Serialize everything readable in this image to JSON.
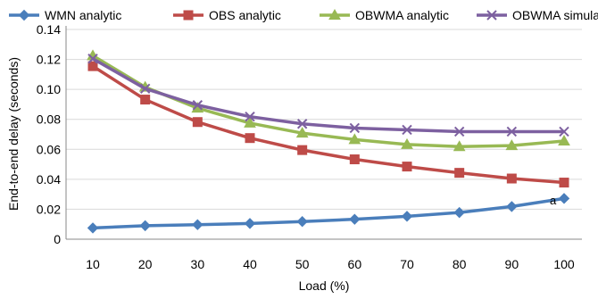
{
  "chart_data": {
    "type": "line",
    "x": [
      10,
      20,
      30,
      40,
      50,
      60,
      70,
      80,
      90,
      100
    ],
    "xlabel": "Load (%)",
    "ylabel": "End-to-end delay (seconds)",
    "ylim": [
      0,
      0.14
    ],
    "yticks": [
      "0",
      "0.02",
      "0.04",
      "0.06",
      "0.08",
      "0.10",
      "0.12",
      "0.14"
    ],
    "xticks": [
      "10",
      "20",
      "30",
      "40",
      "50",
      "60",
      "70",
      "80",
      "90",
      "100"
    ],
    "grid": "horizontal",
    "legend_position": "top",
    "annotation": "a",
    "series": [
      {
        "name": "WMN analytic",
        "color": "#4a7ebb",
        "marker": "diamond",
        "values": [
          0.0075,
          0.009,
          0.0097,
          0.0105,
          0.0118,
          0.0133,
          0.0153,
          0.0178,
          0.0218,
          0.0272
        ]
      },
      {
        "name": "OBS analytic",
        "color": "#be4b48",
        "marker": "square",
        "values": [
          0.1155,
          0.0932,
          0.0782,
          0.0675,
          0.0595,
          0.0533,
          0.0485,
          0.0443,
          0.0405,
          0.0378
        ]
      },
      {
        "name": "OBWMA analytic",
        "color": "#98b954",
        "marker": "triangle",
        "values": [
          0.1225,
          0.1015,
          0.0875,
          0.0775,
          0.0708,
          0.0665,
          0.0632,
          0.0618,
          0.0625,
          0.0655
        ]
      },
      {
        "name": "OBWMA simulation",
        "color": "#7d60a0",
        "marker": "x",
        "values": [
          0.1205,
          0.1005,
          0.0895,
          0.0818,
          0.077,
          0.0742,
          0.073,
          0.0718,
          0.0718,
          0.0718
        ]
      }
    ]
  }
}
